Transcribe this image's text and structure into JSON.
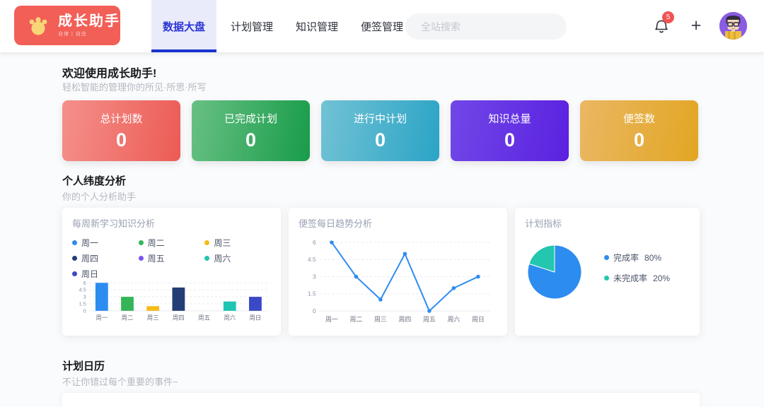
{
  "brand": {
    "name": "成长助手",
    "tagline": "自律 | 自由"
  },
  "header": {
    "tabs": [
      {
        "label": "数据大盘",
        "active": true
      },
      {
        "label": "计划管理",
        "active": false
      },
      {
        "label": "知识管理",
        "active": false
      },
      {
        "label": "便签管理",
        "active": false
      }
    ],
    "search_placeholder": "全站搜索",
    "notification_count": "5",
    "plus_label": "+"
  },
  "welcome": {
    "title": "欢迎使用成长助手!",
    "subtitle": "轻松智能的管理你的所见·所思·所写"
  },
  "stats": [
    {
      "label": "总计划数",
      "value": "0",
      "gradient": [
        "#f5908a",
        "#ec5b55"
      ]
    },
    {
      "label": "已完成计划",
      "value": "0",
      "gradient": [
        "#68c083",
        "#189c4a"
      ]
    },
    {
      "label": "进行中计划",
      "value": "0",
      "gradient": [
        "#72c2d4",
        "#2ba4c6"
      ]
    },
    {
      "label": "知识总量",
      "value": "0",
      "gradient": [
        "#7147e8",
        "#5b21e0"
      ]
    },
    {
      "label": "便签数",
      "value": "0",
      "gradient": [
        "#eab763",
        "#e2a623"
      ]
    }
  ],
  "sections": {
    "personal": {
      "title": "个人纬度分析",
      "subtitle": "你的个人分析助手"
    },
    "calendar": {
      "title": "计划日历",
      "subtitle": "不让你错过每个重要的事件~"
    }
  },
  "chart_data": [
    {
      "type": "bar",
      "title": "每周新学习知识分析",
      "categories": [
        "周一",
        "周二",
        "周三",
        "周四",
        "周五",
        "周六",
        "周日"
      ],
      "values": [
        6,
        3,
        1,
        5,
        0,
        2,
        3
      ],
      "colors": [
        "#2d8cf0",
        "#35b558",
        "#f5bb17",
        "#243d76",
        "#7a52ee",
        "#1ec5b2",
        "#3b49c6"
      ],
      "yticks": [
        0,
        1.5,
        3,
        4.5,
        6
      ],
      "ylim": [
        0,
        6
      ],
      "grid": "dashed",
      "legend_position": "top"
    },
    {
      "type": "line",
      "title": "便签每日趋势分析",
      "categories": [
        "周一",
        "周二",
        "周三",
        "周四",
        "周五",
        "周六",
        "周日"
      ],
      "values": [
        6,
        3,
        1,
        5,
        0,
        2,
        3
      ],
      "color": "#2d8cf0",
      "yticks": [
        0,
        1.5,
        3,
        4.5,
        6
      ],
      "ylim": [
        0,
        6
      ],
      "grid": "dashed"
    },
    {
      "type": "pie",
      "title": "计划指标",
      "slices": [
        {
          "label": "完成率",
          "value": 80,
          "display": "80%",
          "color": "#2d8cf0"
        },
        {
          "label": "未完成率",
          "value": 20,
          "display": "20%",
          "color": "#23c6ae"
        }
      ],
      "legend_position": "right"
    }
  ]
}
